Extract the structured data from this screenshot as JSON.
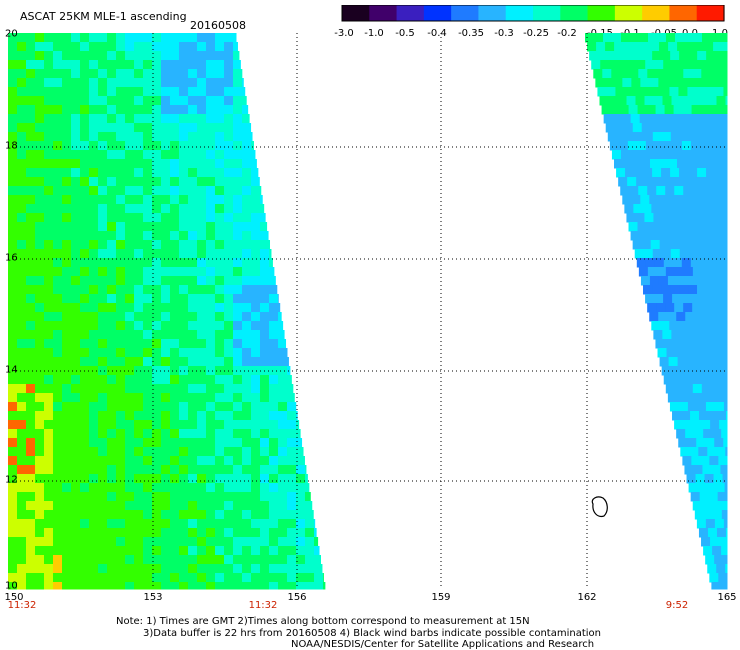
{
  "header": {
    "title": "ASCAT 25KM MLE-1 ascending",
    "date": "20160508"
  },
  "colorbar": {
    "labels": [
      "-3.0",
      "-1.0",
      "-0.5",
      "-0.4",
      "-0.35",
      "-0.3",
      "-0.25",
      "-0.2",
      "-0.15",
      "-0.1",
      "-0.05",
      "0.0",
      "1.0"
    ],
    "colors": [
      "#1a0020",
      "#40006a",
      "#3a1fbf",
      "#0033ff",
      "#1f7bff",
      "#28b4ff",
      "#00f0ff",
      "#00ffcc",
      "#00ff66",
      "#33ff00",
      "#ccff00",
      "#ffcc00",
      "#ff6600",
      "#ff1a00"
    ]
  },
  "axes": {
    "lat_labels": [
      "20",
      "18",
      "16",
      "14",
      "12",
      "10"
    ],
    "lon_labels": [
      "150",
      "153",
      "156",
      "159",
      "162",
      "165"
    ],
    "time_labels": [
      "11:32",
      "11:32",
      "9:52"
    ]
  },
  "notes": {
    "line1": "Note: 1) Times are GMT 2)Times along bottom correspond to measurement at 15N",
    "line2": "3)Data buffer is 22 hrs from 20160508 4) Black wind barbs indicate possible contamination",
    "line3": "NOAA/NESDIS/Center for Satellite Applications and Research"
  },
  "colors": {
    "grid": "#000000",
    "time": "#cc2200"
  }
}
